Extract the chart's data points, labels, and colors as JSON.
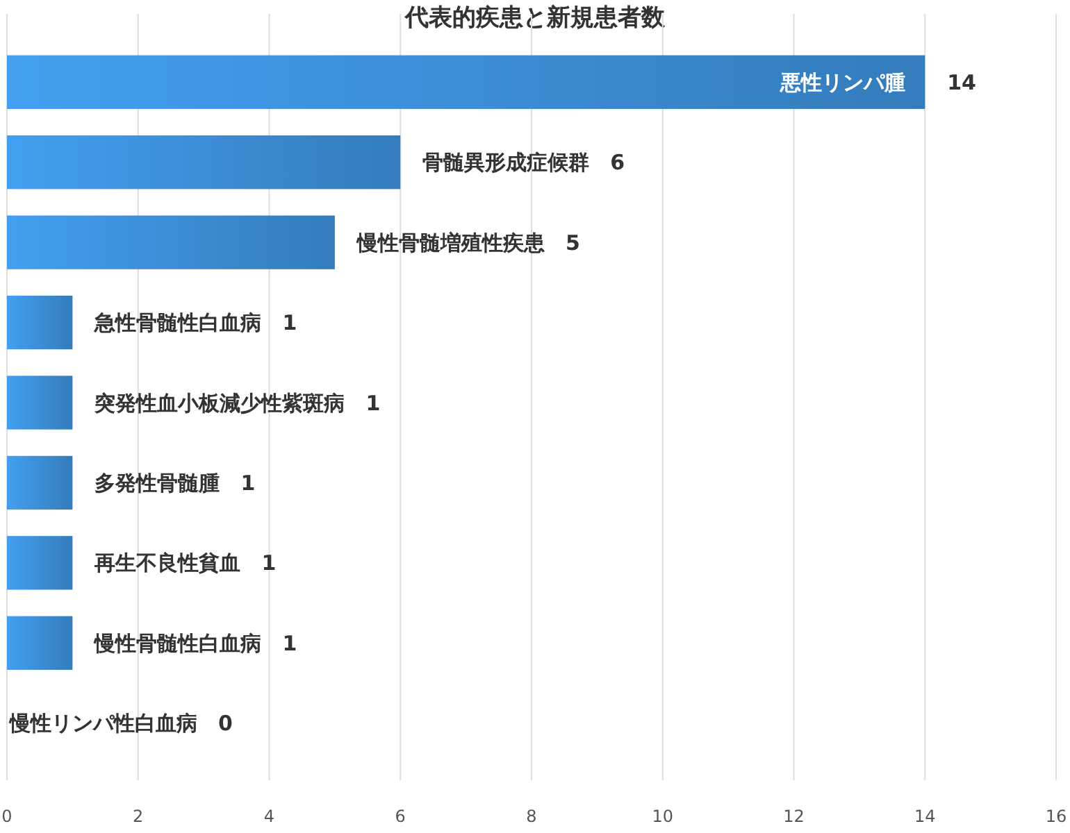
{
  "chart_data": {
    "type": "bar",
    "orientation": "horizontal",
    "title": "代表的疾患と新規患者数",
    "categories": [
      "悪性リンパ腫",
      null,
      null,
      null,
      null,
      null,
      null,
      null,
      null
    ],
    "values": [
      14,
      6,
      5,
      1,
      1,
      1,
      1,
      1,
      0
    ],
    "value_labels": [
      "14",
      "骨髄異形成症候群　6",
      "慢性骨髄増殖性疾患　5",
      "急性骨髄性白血病　1",
      "突発性血小板減少性紫斑病　1",
      "多発性骨髄腫　1",
      "再生不良性貧血　1",
      "慢性骨髄性白血病　1",
      "慢性リンパ性白血病　0"
    ],
    "color": "#3a8ad0",
    "xlim": [
      0,
      16
    ],
    "xticks": [
      0,
      2,
      4,
      6,
      8,
      10,
      12,
      14,
      16
    ],
    "grid": "x"
  }
}
